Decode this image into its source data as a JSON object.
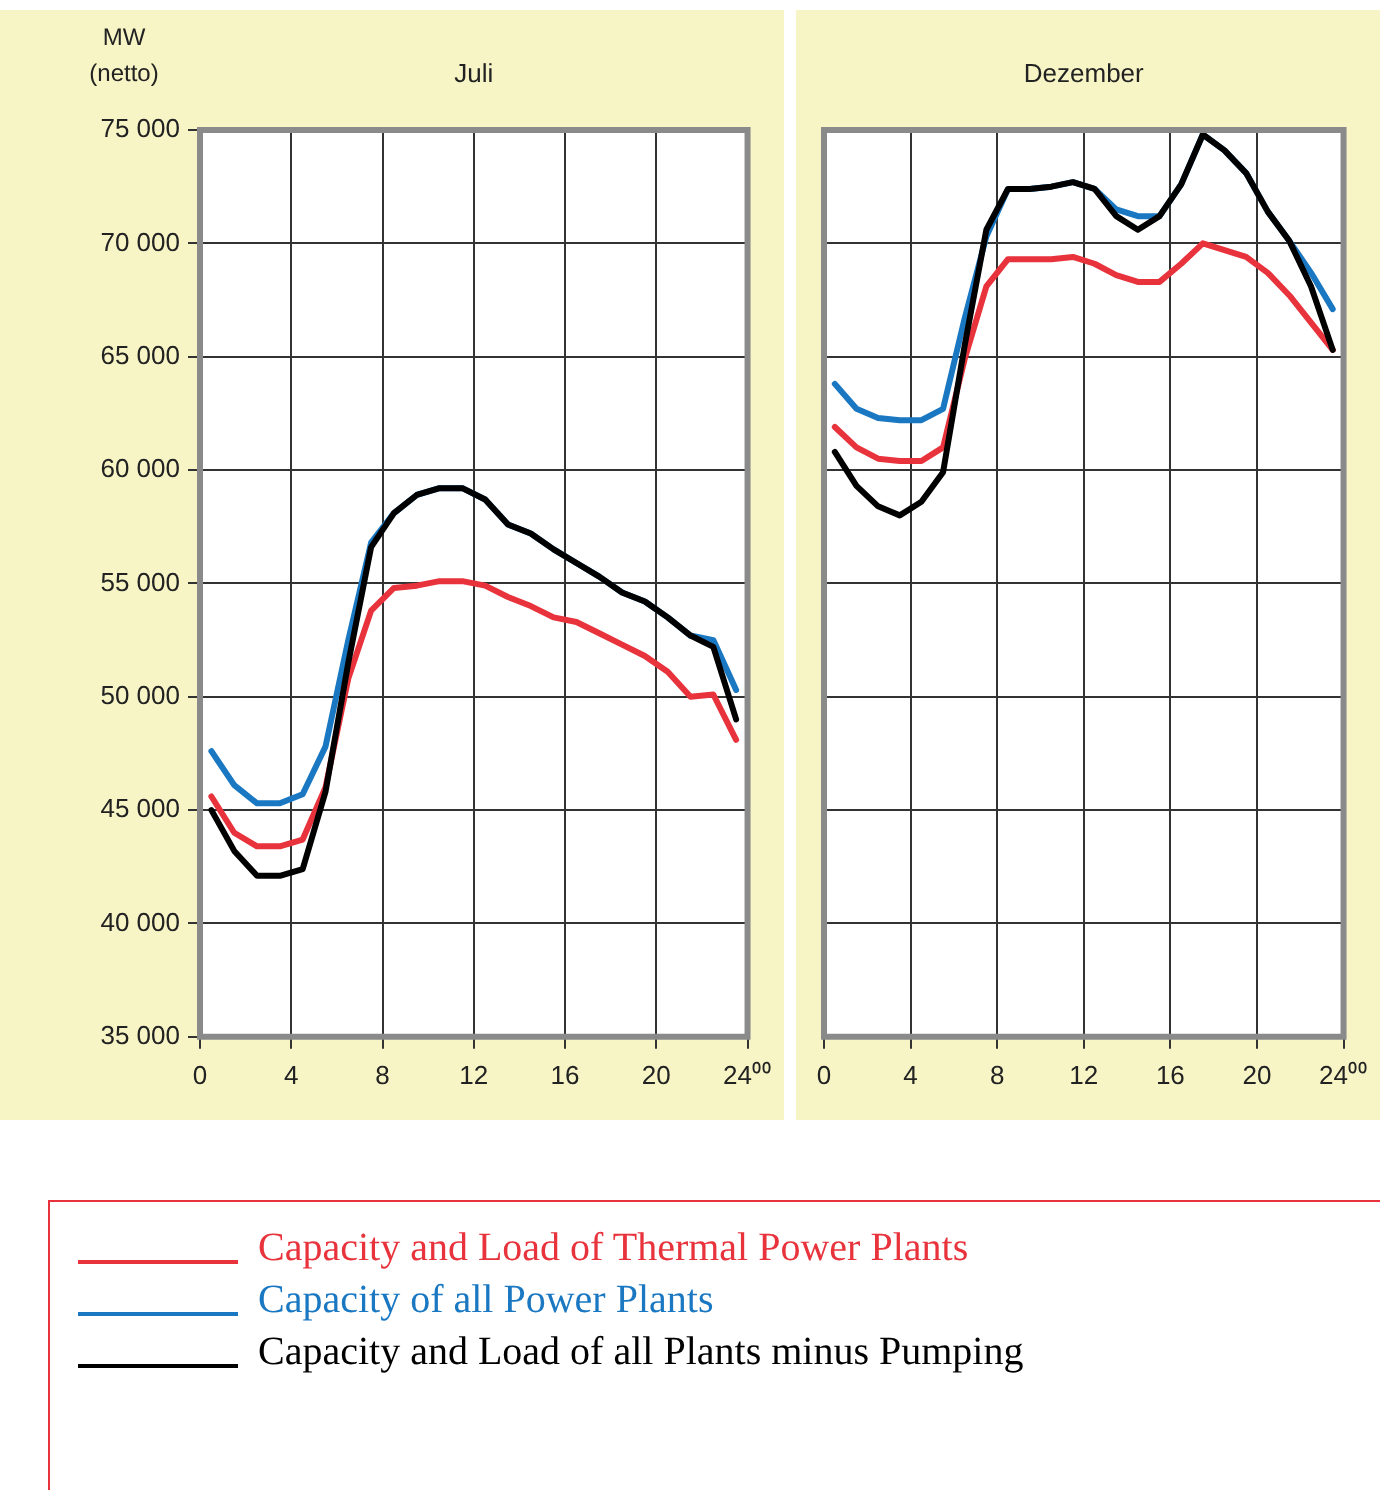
{
  "chart_data": [
    {
      "type": "line",
      "title": "Juli",
      "ylabel": "MW\n(netto)",
      "xlim": [
        0,
        24
      ],
      "xticks": [
        0,
        4,
        8,
        12,
        16,
        20,
        {
          "value": 24,
          "label": "24⁰⁰"
        }
      ],
      "ylim": [
        35000,
        75000
      ],
      "yticks": [
        {
          "value": 35000,
          "label": "35 000"
        },
        {
          "value": 40000,
          "label": "40 000"
        },
        {
          "value": 45000,
          "label": "45 000"
        },
        {
          "value": 50000,
          "label": "50 000"
        },
        {
          "value": 55000,
          "label": "55 000"
        },
        {
          "value": 60000,
          "label": "60 000"
        },
        {
          "value": 65000,
          "label": "65 000"
        },
        {
          "value": 70000,
          "label": "70 000"
        },
        {
          "value": 75000,
          "label": "75 000"
        }
      ],
      "grid": true,
      "legend": "bottom",
      "marker": "none",
      "line_style": "solid",
      "x": [
        0.5,
        1.5,
        2.5,
        3.5,
        4.5,
        5.5,
        6.5,
        7.5,
        8.5,
        9.5,
        10.5,
        11.5,
        12.5,
        13.5,
        14.5,
        15.5,
        16.5,
        17.5,
        18.5,
        19.5,
        20.5,
        21.5,
        22.5,
        23.5
      ],
      "series": [
        {
          "name": "Capacity and Load of Thermal Power Plants",
          "color": "#e8333c",
          "values": [
            45600,
            44000,
            43400,
            43400,
            43700,
            46000,
            50800,
            53800,
            54800,
            54900,
            55100,
            55100,
            54900,
            54400,
            54000,
            53500,
            53300,
            52800,
            52300,
            51800,
            51100,
            50000,
            50100,
            48100
          ]
        },
        {
          "name": "Capacity of all Power Plants",
          "color": "#1a78c2",
          "values": [
            47600,
            46100,
            45300,
            45300,
            45700,
            47800,
            52500,
            56800,
            58100,
            58900,
            59200,
            59200,
            58700,
            57600,
            57200,
            56500,
            55900,
            55300,
            54600,
            54200,
            53500,
            52700,
            52500,
            50300
          ]
        },
        {
          "name": "Capacity and Load of all Plants minus Pumping",
          "color": "#000000",
          "values": [
            45000,
            43200,
            42100,
            42100,
            42400,
            45800,
            51500,
            56600,
            58100,
            58900,
            59200,
            59200,
            58700,
            57600,
            57200,
            56500,
            55900,
            55300,
            54600,
            54200,
            53500,
            52700,
            52200,
            49000
          ]
        }
      ]
    },
    {
      "type": "line",
      "title": "Dezember",
      "tick_labels": "x",
      "xlim": [
        0,
        24
      ],
      "xticks": [
        0,
        4,
        8,
        12,
        16,
        20,
        {
          "value": 24,
          "label": "24⁰⁰"
        }
      ],
      "ylim": [
        35000,
        75000
      ],
      "yticks": [
        {
          "value": 35000,
          "label": null
        },
        {
          "value": 40000,
          "label": null
        },
        {
          "value": 45000,
          "label": null
        },
        {
          "value": 50000,
          "label": null
        },
        {
          "value": 55000,
          "label": null
        },
        {
          "value": 60000,
          "label": null
        },
        {
          "value": 65000,
          "label": null
        },
        {
          "value": 70000,
          "label": null
        },
        {
          "value": 75000,
          "label": null
        }
      ],
      "grid": true,
      "marker": "none",
      "line_style": "solid",
      "x": [
        0.5,
        1.5,
        2.5,
        3.5,
        4.5,
        5.5,
        6.5,
        7.5,
        8.5,
        9.5,
        10.5,
        11.5,
        12.5,
        13.5,
        14.5,
        15.5,
        16.5,
        17.5,
        18.5,
        19.5,
        20.5,
        21.5,
        22.5,
        23.5
      ],
      "series": [
        {
          "color": "#e8333c",
          "values": [
            61900,
            61000,
            60500,
            60400,
            60400,
            61000,
            64900,
            68100,
            69300,
            69300,
            69300,
            69400,
            69100,
            68600,
            68300,
            68300,
            69100,
            70000,
            69700,
            69400,
            68700,
            67700,
            66500,
            65300
          ]
        },
        {
          "color": "#1a78c2",
          "values": [
            63800,
            62700,
            62300,
            62200,
            62200,
            62700,
            66700,
            70300,
            72400,
            72400,
            72500,
            72700,
            72400,
            71500,
            71200,
            71200,
            72600,
            74800,
            74100,
            73100,
            71400,
            70100,
            68700,
            67100
          ]
        },
        {
          "color": "#000000",
          "values": [
            60800,
            59300,
            58400,
            58000,
            58600,
            59900,
            65500,
            70600,
            72400,
            72400,
            72500,
            72700,
            72400,
            71200,
            70600,
            71200,
            72600,
            74800,
            74100,
            73100,
            71400,
            70100,
            68100,
            65300
          ]
        }
      ]
    }
  ]
}
